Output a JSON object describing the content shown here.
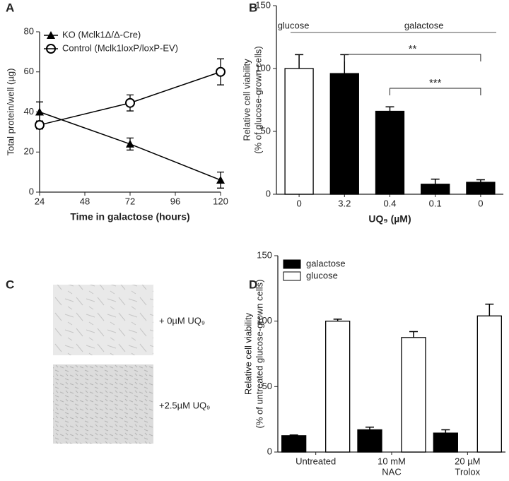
{
  "chart_data": [
    {
      "type": "line",
      "panel": "A",
      "xlabel": "Time in galactose (hours)",
      "ylabel": [
        "Total protein/well (µg)"
      ],
      "x": [
        24,
        72,
        120
      ],
      "xlim": [
        24,
        120
      ],
      "xticks": [
        24,
        48,
        72,
        96,
        120
      ],
      "ylim": [
        0,
        80
      ],
      "yticks": [
        0,
        20,
        40,
        60,
        80
      ],
      "grid": false,
      "legend": "top-left",
      "series": [
        {
          "name": "KO (Mclk1Δ/Δ-Cre)",
          "color": "#000000",
          "marker": "triangle",
          "values": [
            40,
            24,
            6
          ],
          "errors": [
            5,
            3,
            4
          ]
        },
        {
          "name": "Control (Mclk1loxP/loxP-EV)",
          "color": "#000000",
          "marker": "circle",
          "values": [
            33.5,
            44.5,
            60
          ],
          "errors": [
            2,
            4,
            6.5
          ]
        }
      ]
    },
    {
      "type": "bar",
      "panel": "B",
      "xlabel": "UQ₉ (µM)",
      "ylabel": [
        "Relative cell viability",
        "(% of glucose-grown cells)"
      ],
      "categories": [
        "0",
        "3.2",
        "0.4",
        "0.1",
        "0"
      ],
      "values": [
        100,
        96,
        66,
        8,
        9.5
      ],
      "errors": [
        11,
        15,
        3.5,
        4,
        2
      ],
      "colors": [
        "#ffffff",
        "#000000",
        "#000000",
        "#000000",
        "#000000"
      ],
      "ylim": [
        0,
        150
      ],
      "yticks": [
        0,
        50,
        100,
        150
      ],
      "grid": false,
      "annotations": [
        "glucose",
        "galactose",
        "**",
        "***"
      ]
    },
    {
      "type": "bar",
      "panel": "D",
      "ylabel": [
        "Relative cell viability",
        "(% of untreated glucose-grown cells)"
      ],
      "categories": [
        [
          "Untreated"
        ],
        [
          "10 mM",
          "NAC"
        ],
        [
          "20 µM",
          "Trolox"
        ]
      ],
      "ylim": [
        0,
        150
      ],
      "yticks": [
        0,
        50,
        100,
        150
      ],
      "grid": false,
      "legend": "top-left",
      "series": [
        {
          "name": "galactose",
          "color": "#000000",
          "values": [
            12.5,
            17,
            14.5
          ],
          "errors": [
            0.5,
            2,
            2.5
          ]
        },
        {
          "name": "glucose",
          "color": "#ffffff",
          "values": [
            100,
            87.5,
            104
          ],
          "errors": [
            1.5,
            4.5,
            9
          ]
        }
      ]
    }
  ],
  "image_panel": {
    "panel": "C",
    "captions": [
      "+ 0µM UQ₉",
      "+2.5µM UQ₉"
    ]
  }
}
